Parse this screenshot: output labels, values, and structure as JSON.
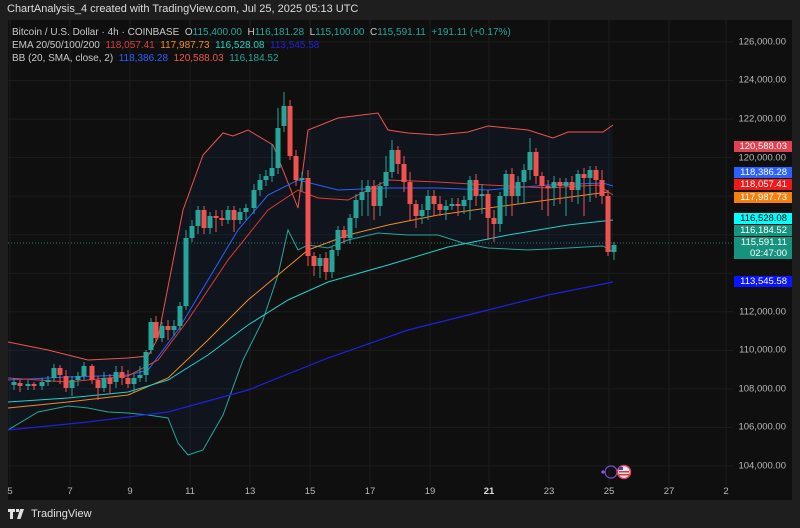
{
  "title": "ChartAnalysis_4 created with TradingView.com, Jul 25, 2025 05:13 UTC",
  "legend": {
    "symbol": "Bitcoin / U.S. Dollar · 4h · COINBASE",
    "o_label": "O",
    "open": "115,400.00",
    "h_label": "H",
    "high": "116,181.28",
    "l_label": "L",
    "low": "115,100.00",
    "c_label": "C",
    "close": "115,591.11",
    "change": "+191.11 (+0.17%)",
    "ema_label": "EMA 20/50/100/200",
    "ema20": "118,057.41",
    "ema50": "117,987.73",
    "ema100": "116,528.08",
    "ema200": "113,545.58",
    "bb_label": "BB (20, SMA, close, 2)",
    "bb_basis": "118,386.28",
    "bb_upper": "120,588.03",
    "bb_lower": "116,184.52"
  },
  "colors": {
    "up": "#26a69a",
    "down": "#ef5350",
    "ema20": "#e03c3c",
    "ema50": "#f08a24",
    "ema100": "#1fd1c9",
    "ema200": "#2020e0",
    "bb_basis": "#2962ff",
    "bb_upper": "#ef5350",
    "bb_lower": "#26a69a"
  },
  "y_axis": {
    "ticks": [
      "126,000.00",
      "124,000.00",
      "122,000.00",
      "120,000.00",
      "118,000.00",
      "116,000.00",
      "114,000.00",
      "112,000.00",
      "110,000.00",
      "108,000.00",
      "106,000.00",
      "104,000.00"
    ],
    "badges": [
      {
        "text": "120,588.03",
        "bg": "#e0404f",
        "fg": "#ffffff"
      },
      {
        "text": "118,386.28",
        "bg": "#2962ff",
        "fg": "#ffffff"
      },
      {
        "text": "118,057.41",
        "bg": "#f01818",
        "fg": "#ffffff"
      },
      {
        "text": "117,987.73",
        "bg": "#f57f0f",
        "fg": "#ffffff"
      },
      {
        "text": "116,528.08",
        "bg": "#00ffff",
        "fg": "#000000"
      },
      {
        "text": "116,184.52",
        "bg": "#15937f",
        "fg": "#ffffff"
      },
      {
        "text": "115,591.11",
        "bg": "#15937f",
        "fg": "#ffffff"
      },
      {
        "text": "02:47:00",
        "bg": "#15937f",
        "fg": "#ffffff"
      },
      {
        "text": "113,545.58",
        "bg": "#0a14ff",
        "fg": "#ffffff"
      }
    ]
  },
  "x_axis": {
    "ticks": [
      "5",
      "7",
      "9",
      "11",
      "13",
      "15",
      "17",
      "19",
      "21",
      "23",
      "25",
      "27",
      "2"
    ]
  },
  "footer": {
    "brand": "TradingView"
  },
  "chart_data": {
    "type": "candlestick",
    "title": "Bitcoin / U.S. Dollar · 4h · COINBASE",
    "x": [
      "5",
      "7",
      "9",
      "11",
      "13",
      "15",
      "17",
      "19",
      "21",
      "23",
      "25",
      "27",
      "2"
    ],
    "ylim": [
      103500,
      127000
    ],
    "last_price": 115591.11,
    "series": [
      {
        "name": "EMA 20",
        "value": 118057.41
      },
      {
        "name": "EMA 50",
        "value": 117987.73
      },
      {
        "name": "EMA 100",
        "value": 116528.08
      },
      {
        "name": "EMA 200",
        "value": 113545.58
      },
      {
        "name": "BB basis",
        "value": 118386.28
      },
      {
        "name": "BB upper",
        "value": 120588.03
      },
      {
        "name": "BB lower",
        "value": 116184.52
      }
    ]
  }
}
